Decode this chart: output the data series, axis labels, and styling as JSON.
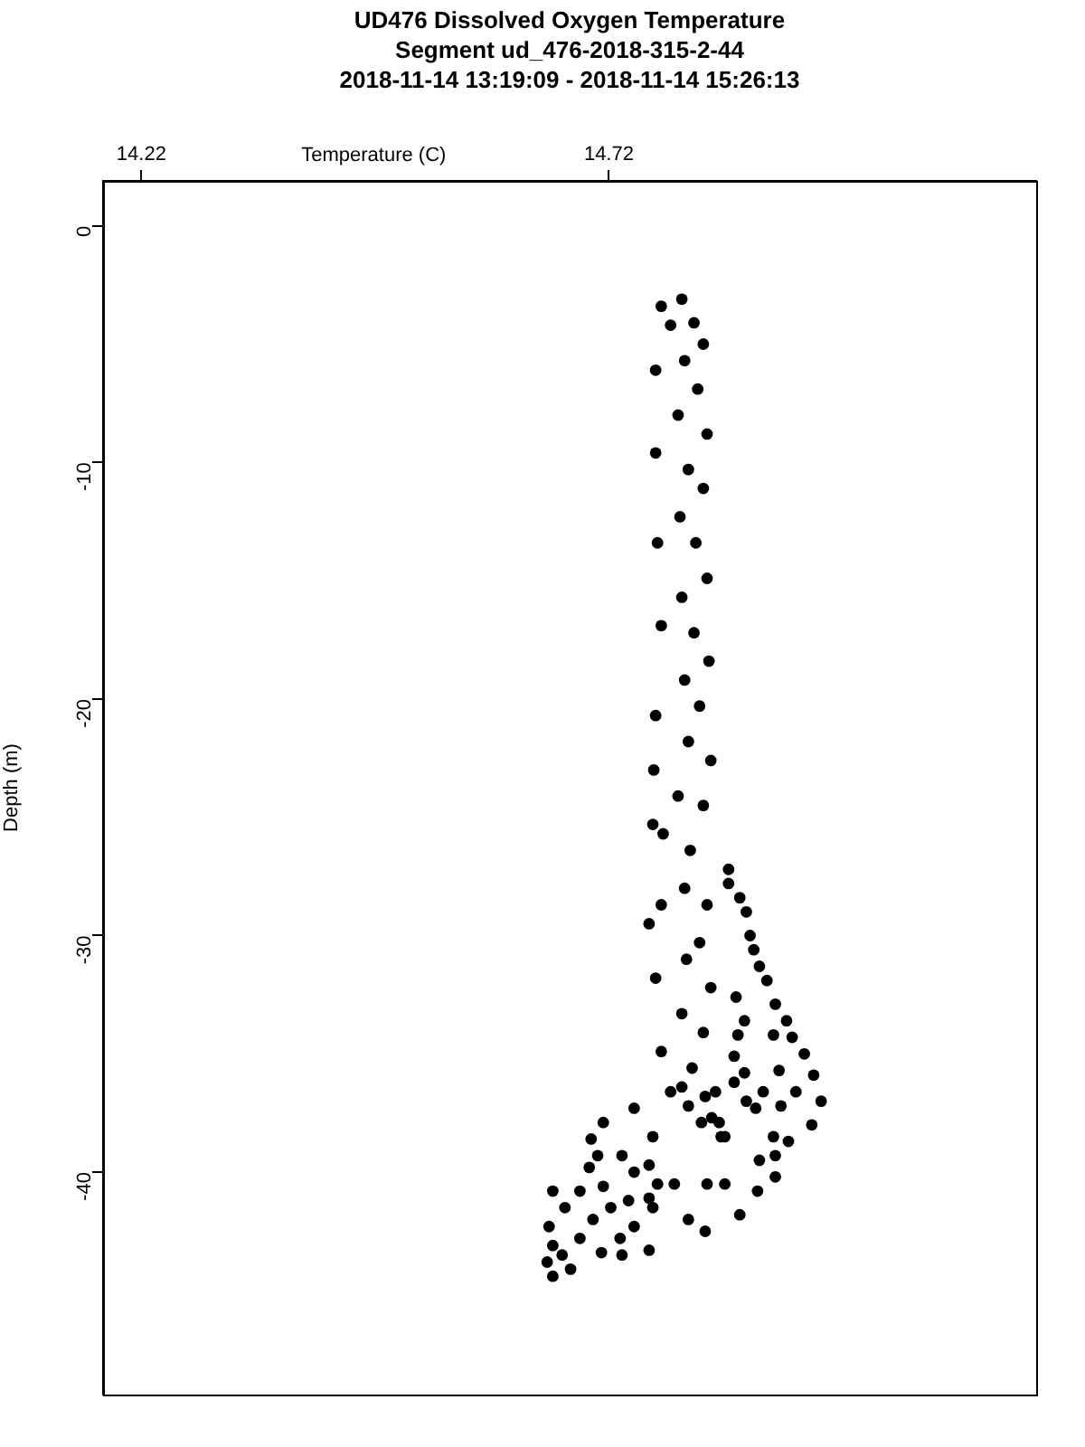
{
  "chart_data": {
    "type": "scatter",
    "title": "UD476 Dissolved Oxygen Temperature",
    "subtitle": "Segment ud_476-2018-315-2-44\n2018-11-14 13:19:09 - 2018-11-14 15:26:13",
    "xlabel": "Temperature (C)",
    "ylabel": "Depth (m)",
    "xlim": [
      14.179,
      15.177
    ],
    "xticks": [
      14.22,
      14.72
    ],
    "ylim": [
      -49.4,
      1.9
    ],
    "yticks": [
      0,
      -10,
      -20,
      -30,
      -40
    ],
    "grid": false,
    "legend": false,
    "marker": "circle",
    "series": [
      {
        "color": "#000000",
        "x": [
          14.798,
          14.776,
          14.786,
          14.811,
          14.821,
          14.77,
          14.801,
          14.815,
          14.794,
          14.825,
          14.77,
          14.805,
          14.821,
          14.796,
          14.772,
          14.813,
          14.825,
          14.798,
          14.776,
          14.811,
          14.827,
          14.801,
          14.77,
          14.817,
          14.805,
          14.829,
          14.768,
          14.794,
          14.821,
          14.778,
          14.807,
          14.801,
          14.825,
          14.776,
          14.817,
          14.803,
          14.77,
          14.829,
          14.798,
          14.821,
          14.776,
          14.809,
          14.798,
          14.823,
          14.767,
          14.763,
          14.848,
          14.848,
          14.86,
          14.867,
          14.871,
          14.875,
          14.881,
          14.889,
          14.898,
          14.91,
          14.916,
          14.929,
          14.939,
          14.947,
          14.937,
          14.92,
          14.902,
          14.896,
          14.856,
          14.865,
          14.858,
          14.854,
          14.865,
          14.885,
          14.867,
          14.877,
          14.904,
          14.896,
          14.912,
          14.898,
          14.881,
          14.898,
          14.879,
          14.86,
          14.844,
          14.844,
          14.825,
          14.805,
          14.823,
          14.84,
          14.83,
          14.747,
          14.714,
          14.701,
          14.767,
          14.734,
          14.708,
          14.699,
          14.747,
          14.763,
          14.79,
          14.772,
          14.714,
          14.689,
          14.66,
          14.673,
          14.722,
          14.741,
          14.763,
          14.703,
          14.747,
          14.767,
          14.656,
          14.689,
          14.732,
          14.66,
          14.712,
          14.763,
          14.67,
          14.654,
          14.734,
          14.66,
          14.679,
          14.786,
          14.805,
          14.819,
          14.838,
          14.834,
          14.854
        ],
        "values": [
          -3.1,
          -3.4,
          -4.2,
          -4.1,
          -5.0,
          -6.1,
          -5.7,
          -6.9,
          -8.0,
          -8.8,
          -9.6,
          -10.3,
          -11.1,
          -12.3,
          -13.4,
          -13.4,
          -14.9,
          -15.7,
          -16.9,
          -17.2,
          -18.4,
          -19.2,
          -20.7,
          -20.3,
          -21.8,
          -22.6,
          -23.0,
          -24.1,
          -24.5,
          -25.7,
          -26.4,
          -28.0,
          -28.7,
          -28.7,
          -30.3,
          -31.0,
          -31.8,
          -32.2,
          -33.3,
          -34.1,
          -34.9,
          -35.6,
          -36.4,
          -36.8,
          -25.3,
          -29.5,
          -27.2,
          -27.8,
          -28.4,
          -29.0,
          -30.0,
          -30.6,
          -31.3,
          -31.9,
          -32.9,
          -33.6,
          -34.3,
          -35.0,
          -35.9,
          -37.0,
          -38.0,
          -36.6,
          -35.7,
          -34.2,
          -32.6,
          -33.6,
          -34.2,
          -35.1,
          -35.8,
          -36.6,
          -37.0,
          -37.3,
          -37.2,
          -38.5,
          -38.7,
          -39.3,
          -39.5,
          -40.2,
          -40.8,
          -41.8,
          -38.5,
          -40.5,
          -40.5,
          -42.0,
          -42.5,
          -38.5,
          -37.7,
          -37.3,
          -37.9,
          -38.6,
          -38.5,
          -39.3,
          -39.3,
          -39.8,
          -40.0,
          -39.7,
          -40.5,
          -40.5,
          -40.6,
          -40.8,
          -40.8,
          -41.5,
          -41.5,
          -41.2,
          -41.1,
          -42.0,
          -42.3,
          -41.5,
          -42.3,
          -42.8,
          -42.8,
          -43.1,
          -43.4,
          -43.3,
          -43.5,
          -43.8,
          -43.5,
          -44.4,
          -44.1,
          -36.6,
          -37.2,
          -37.9,
          -37.9,
          -36.6,
          -36.2
        ]
      }
    ]
  }
}
